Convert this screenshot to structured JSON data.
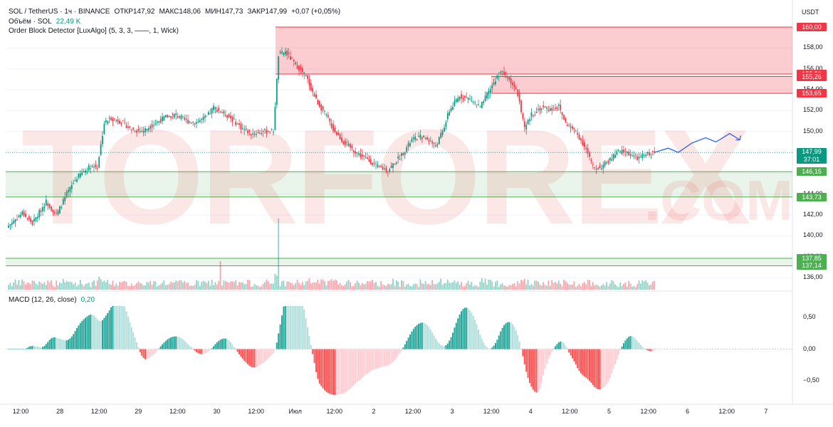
{
  "header": {
    "symbol": "SOL / TetherUS · 1ч · BINANCE",
    "open": "ОТКР147,92",
    "high": "МАКС148,06",
    "low": "МИН147,73",
    "close": "ЗАКР147,99",
    "change": "+0,07 (+0,05%)",
    "volume_label": "Объём · SOL",
    "volume_value": "22,49 K",
    "indicator": "Order Block Detector [LuxAlgo] (5, 3, 3, ——, 1, Wick)",
    "currency": "USDT"
  },
  "macd_legend": {
    "label": "MACD (12, 26, close)",
    "value": "0,20"
  },
  "watermark": {
    "main": "TORFOREX",
    "sub": ".COM"
  },
  "colors": {
    "up": "#089981",
    "down": "#f23645",
    "bear_zone": "#f23645",
    "bull_zone": "#4caf50",
    "forecast": "#2962ff"
  },
  "chart_data": {
    "type": "candlestick",
    "y_axis_ticks": [
      "158,00",
      "156,00",
      "154,00",
      "152,00",
      "150,00",
      "148,00",
      "146,00",
      "144,00",
      "142,00",
      "140,00",
      "138,00",
      "136,00"
    ],
    "x_axis_labels": [
      "12:00",
      "28",
      "12:00",
      "29",
      "12:00",
      "30",
      "12:00",
      "Июл",
      "12:00",
      "2",
      "12:00",
      "3",
      "12:00",
      "4",
      "12:00",
      "5",
      "12:00",
      "6",
      "12:00",
      "7"
    ],
    "macd_ticks": [
      "0,50",
      "0,00",
      "−0,50"
    ],
    "last_price": "147,99",
    "countdown": "37:01",
    "price_tags": [
      {
        "label": "160,00",
        "kind": "bear"
      },
      {
        "label": "155,50",
        "kind": "bear"
      },
      {
        "label": "155,26",
        "kind": "bear"
      },
      {
        "label": "153,65",
        "kind": "bear"
      },
      {
        "label": "146,15",
        "kind": "bull"
      },
      {
        "label": "143,73",
        "kind": "bull"
      },
      {
        "label": "137,85",
        "kind": "bull"
      },
      {
        "label": "137,14",
        "kind": "bull"
      }
    ],
    "bearish_order_blocks": [
      {
        "from": 155.5,
        "to": 160.0
      },
      {
        "from": 153.65,
        "to": 155.26
      }
    ],
    "bullish_order_blocks": [
      {
        "from": 143.73,
        "to": 146.15
      },
      {
        "from": 137.14,
        "to": 137.85
      }
    ],
    "close_path": [
      [
        0,
        141.0
      ],
      [
        8,
        142.2
      ],
      [
        14,
        141.2
      ],
      [
        22,
        143.3
      ],
      [
        28,
        142.0
      ],
      [
        34,
        144.0
      ],
      [
        40,
        145.6
      ],
      [
        48,
        146.7
      ],
      [
        52,
        146.6
      ],
      [
        56,
        150.8
      ],
      [
        60,
        151.3
      ],
      [
        66,
        150.9
      ],
      [
        72,
        150.2
      ],
      [
        78,
        150.0
      ],
      [
        84,
        150.6
      ],
      [
        92,
        151.4
      ],
      [
        98,
        151.6
      ],
      [
        104,
        151.0
      ],
      [
        110,
        150.9
      ],
      [
        116,
        151.4
      ],
      [
        120,
        152.3
      ],
      [
        126,
        151.7
      ],
      [
        130,
        151.3
      ],
      [
        136,
        150.4
      ],
      [
        142,
        149.8
      ],
      [
        150,
        150.0
      ],
      [
        155,
        150.1
      ],
      [
        158,
        157.3
      ],
      [
        162,
        157.6
      ],
      [
        168,
        156.4
      ],
      [
        174,
        155.3
      ],
      [
        180,
        153.0
      ],
      [
        186,
        151.5
      ],
      [
        190,
        150.2
      ],
      [
        196,
        149.0
      ],
      [
        202,
        148.2
      ],
      [
        206,
        147.7
      ],
      [
        212,
        147.1
      ],
      [
        216,
        146.6
      ],
      [
        222,
        146.3
      ],
      [
        228,
        147.4
      ],
      [
        232,
        148.2
      ],
      [
        236,
        149.2
      ],
      [
        242,
        149.5
      ],
      [
        246,
        149.2
      ],
      [
        250,
        148.6
      ],
      [
        254,
        150.0
      ],
      [
        258,
        152.0
      ],
      [
        264,
        153.4
      ],
      [
        270,
        153.1
      ],
      [
        276,
        152.3
      ],
      [
        282,
        154.1
      ],
      [
        288,
        155.8
      ],
      [
        294,
        154.8
      ],
      [
        298,
        153.6
      ],
      [
        302,
        150.2
      ],
      [
        306,
        151.6
      ],
      [
        312,
        152.3
      ],
      [
        318,
        152.1
      ],
      [
        322,
        152.4
      ],
      [
        326,
        150.8
      ],
      [
        332,
        150.0
      ],
      [
        338,
        148.3
      ],
      [
        342,
        146.6
      ],
      [
        346,
        146.5
      ],
      [
        352,
        147.3
      ],
      [
        356,
        148.0
      ],
      [
        360,
        148.1
      ],
      [
        364,
        147.8
      ],
      [
        368,
        147.4
      ],
      [
        374,
        147.9
      ],
      [
        378,
        148.0
      ]
    ],
    "forecast_path": [
      [
        378,
        148.0
      ],
      [
        386,
        148.4
      ],
      [
        392,
        148.0
      ],
      [
        400,
        148.9
      ],
      [
        408,
        149.4
      ],
      [
        414,
        149.0
      ],
      [
        422,
        149.8
      ],
      [
        428,
        149.2
      ]
    ],
    "volume_spikes": [
      {
        "bar": 124,
        "value": "high"
      },
      {
        "bar": 158,
        "value": "high"
      }
    ],
    "macd_histogram_range": [
      -0.78,
      0.68
    ]
  }
}
